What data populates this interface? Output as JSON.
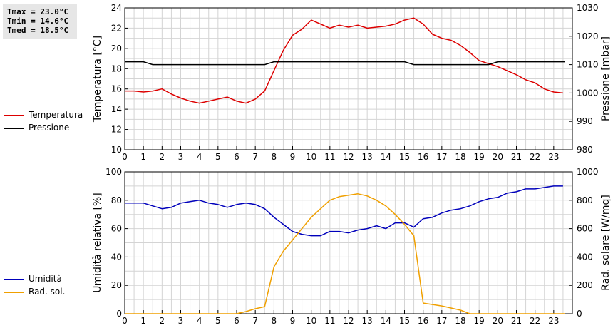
{
  "stats": {
    "tmax": "Tmax = 23.0°C",
    "tmin": "Tmin = 14.6°C",
    "tmed": "Tmed = 18.5°C"
  },
  "legend_top": [
    {
      "label": "Temperatura",
      "color": "#dd0000"
    },
    {
      "label": "Pressione",
      "color": "#000000"
    }
  ],
  "legend_bottom": [
    {
      "label": "Umidità",
      "color": "#0000bb"
    },
    {
      "label": "Rad. sol.",
      "color": "#f0a000"
    }
  ],
  "chart_data": [
    {
      "type": "line",
      "ylabel": "Temperatura [°C]",
      "y2label": "Pressione [mbar]",
      "xlim": [
        0,
        24
      ],
      "ylim": [
        10,
        24
      ],
      "y2lim": [
        980,
        1030
      ],
      "xticks": [
        "0",
        "1",
        "2",
        "3",
        "4",
        "5",
        "6",
        "7",
        "8",
        "9",
        "10",
        "11",
        "12",
        "13",
        "14",
        "15",
        "16",
        "17",
        "18",
        "19",
        "20",
        "21",
        "22",
        "23"
      ],
      "yticks": [
        "10",
        "12",
        "14",
        "16",
        "18",
        "20",
        "22",
        "24"
      ],
      "y2ticks": [
        "980",
        "990",
        "1000",
        "1010",
        "1020",
        "1030"
      ],
      "grid": true,
      "series": [
        {
          "name": "Temperatura",
          "axis": "left",
          "color": "#dd0000",
          "x": [
            0,
            0.5,
            1,
            1.5,
            2,
            2.5,
            3,
            3.5,
            4,
            4.5,
            5,
            5.5,
            6,
            6.5,
            7,
            7.5,
            8,
            8.5,
            9,
            9.5,
            10,
            10.5,
            11,
            11.5,
            12,
            12.5,
            13,
            13.5,
            14,
            14.5,
            15,
            15.5,
            16,
            16.5,
            17,
            17.5,
            18,
            18.5,
            19,
            19.5,
            20,
            20.5,
            21,
            21.5,
            22,
            22.5,
            23,
            23.5
          ],
          "y": [
            15.8,
            15.8,
            15.7,
            15.8,
            16.0,
            15.5,
            15.1,
            14.8,
            14.6,
            14.8,
            15.0,
            15.2,
            14.8,
            14.6,
            15.0,
            15.8,
            17.8,
            19.8,
            21.3,
            21.9,
            22.8,
            22.4,
            22.0,
            22.3,
            22.1,
            22.3,
            22.0,
            22.1,
            22.2,
            22.4,
            22.8,
            23.0,
            22.4,
            21.4,
            21.0,
            20.8,
            20.3,
            19.6,
            18.8,
            18.5,
            18.2,
            17.8,
            17.4,
            16.9,
            16.6,
            16.0,
            15.7,
            15.6
          ]
        },
        {
          "name": "Pressione",
          "axis": "right",
          "color": "#000000",
          "x": [
            0,
            1,
            1.5,
            2,
            7.5,
            8,
            15,
            15.5,
            19.5,
            20,
            23.6
          ],
          "y": [
            1011,
            1011,
            1010,
            1010,
            1010,
            1011,
            1011,
            1010,
            1010,
            1011,
            1011
          ]
        }
      ]
    },
    {
      "type": "line",
      "ylabel": "Umidità relativa [%]",
      "y2label": "Rad. solare [W/mq]",
      "xlim": [
        0,
        24
      ],
      "ylim": [
        0,
        100
      ],
      "y2lim": [
        0,
        1000
      ],
      "xticks": [
        "0",
        "1",
        "2",
        "3",
        "4",
        "5",
        "6",
        "7",
        "8",
        "9",
        "10",
        "11",
        "12",
        "13",
        "14",
        "15",
        "16",
        "17",
        "18",
        "19",
        "20",
        "21",
        "22",
        "23"
      ],
      "yticks": [
        "0",
        "20",
        "40",
        "60",
        "80",
        "100"
      ],
      "y2ticks": [
        "0",
        "200",
        "400",
        "600",
        "800",
        "1000"
      ],
      "grid": true,
      "series": [
        {
          "name": "Umidità",
          "axis": "left",
          "color": "#0000bb",
          "x": [
            0,
            0.5,
            1,
            1.5,
            2,
            2.5,
            3,
            3.5,
            4,
            4.5,
            5,
            5.5,
            6,
            6.5,
            7,
            7.5,
            8,
            8.5,
            9,
            9.5,
            10,
            10.5,
            11,
            11.5,
            12,
            12.5,
            13,
            13.5,
            14,
            14.5,
            15,
            15.5,
            16,
            16.5,
            17,
            17.5,
            18,
            18.5,
            19,
            19.5,
            20,
            20.5,
            21,
            21.5,
            22,
            22.5,
            23,
            23.5
          ],
          "y": [
            78,
            78,
            78,
            76,
            74,
            75,
            78,
            79,
            80,
            78,
            77,
            75,
            77,
            78,
            77,
            74,
            68,
            63,
            58,
            56,
            55,
            55,
            58,
            58,
            57,
            59,
            60,
            62,
            60,
            64,
            64,
            61,
            67,
            68,
            71,
            73,
            74,
            76,
            79,
            81,
            82,
            85,
            86,
            88,
            88,
            89,
            90,
            90
          ]
        },
        {
          "name": "Rad. sol.",
          "axis": "right",
          "color": "#f0a000",
          "x": [
            0,
            6,
            6.5,
            7,
            7.5,
            8,
            8.5,
            9,
            9.5,
            10,
            10.5,
            11,
            11.5,
            12,
            12.5,
            13,
            13.5,
            14,
            14.5,
            15,
            15.5,
            16,
            16.5,
            17,
            17.5,
            18,
            18.5,
            19,
            23.6
          ],
          "y": [
            0,
            0,
            15,
            35,
            50,
            330,
            440,
            520,
            600,
            680,
            740,
            800,
            825,
            835,
            845,
            830,
            800,
            760,
            700,
            630,
            550,
            75,
            65,
            55,
            40,
            25,
            0,
            0,
            0
          ]
        }
      ]
    }
  ]
}
